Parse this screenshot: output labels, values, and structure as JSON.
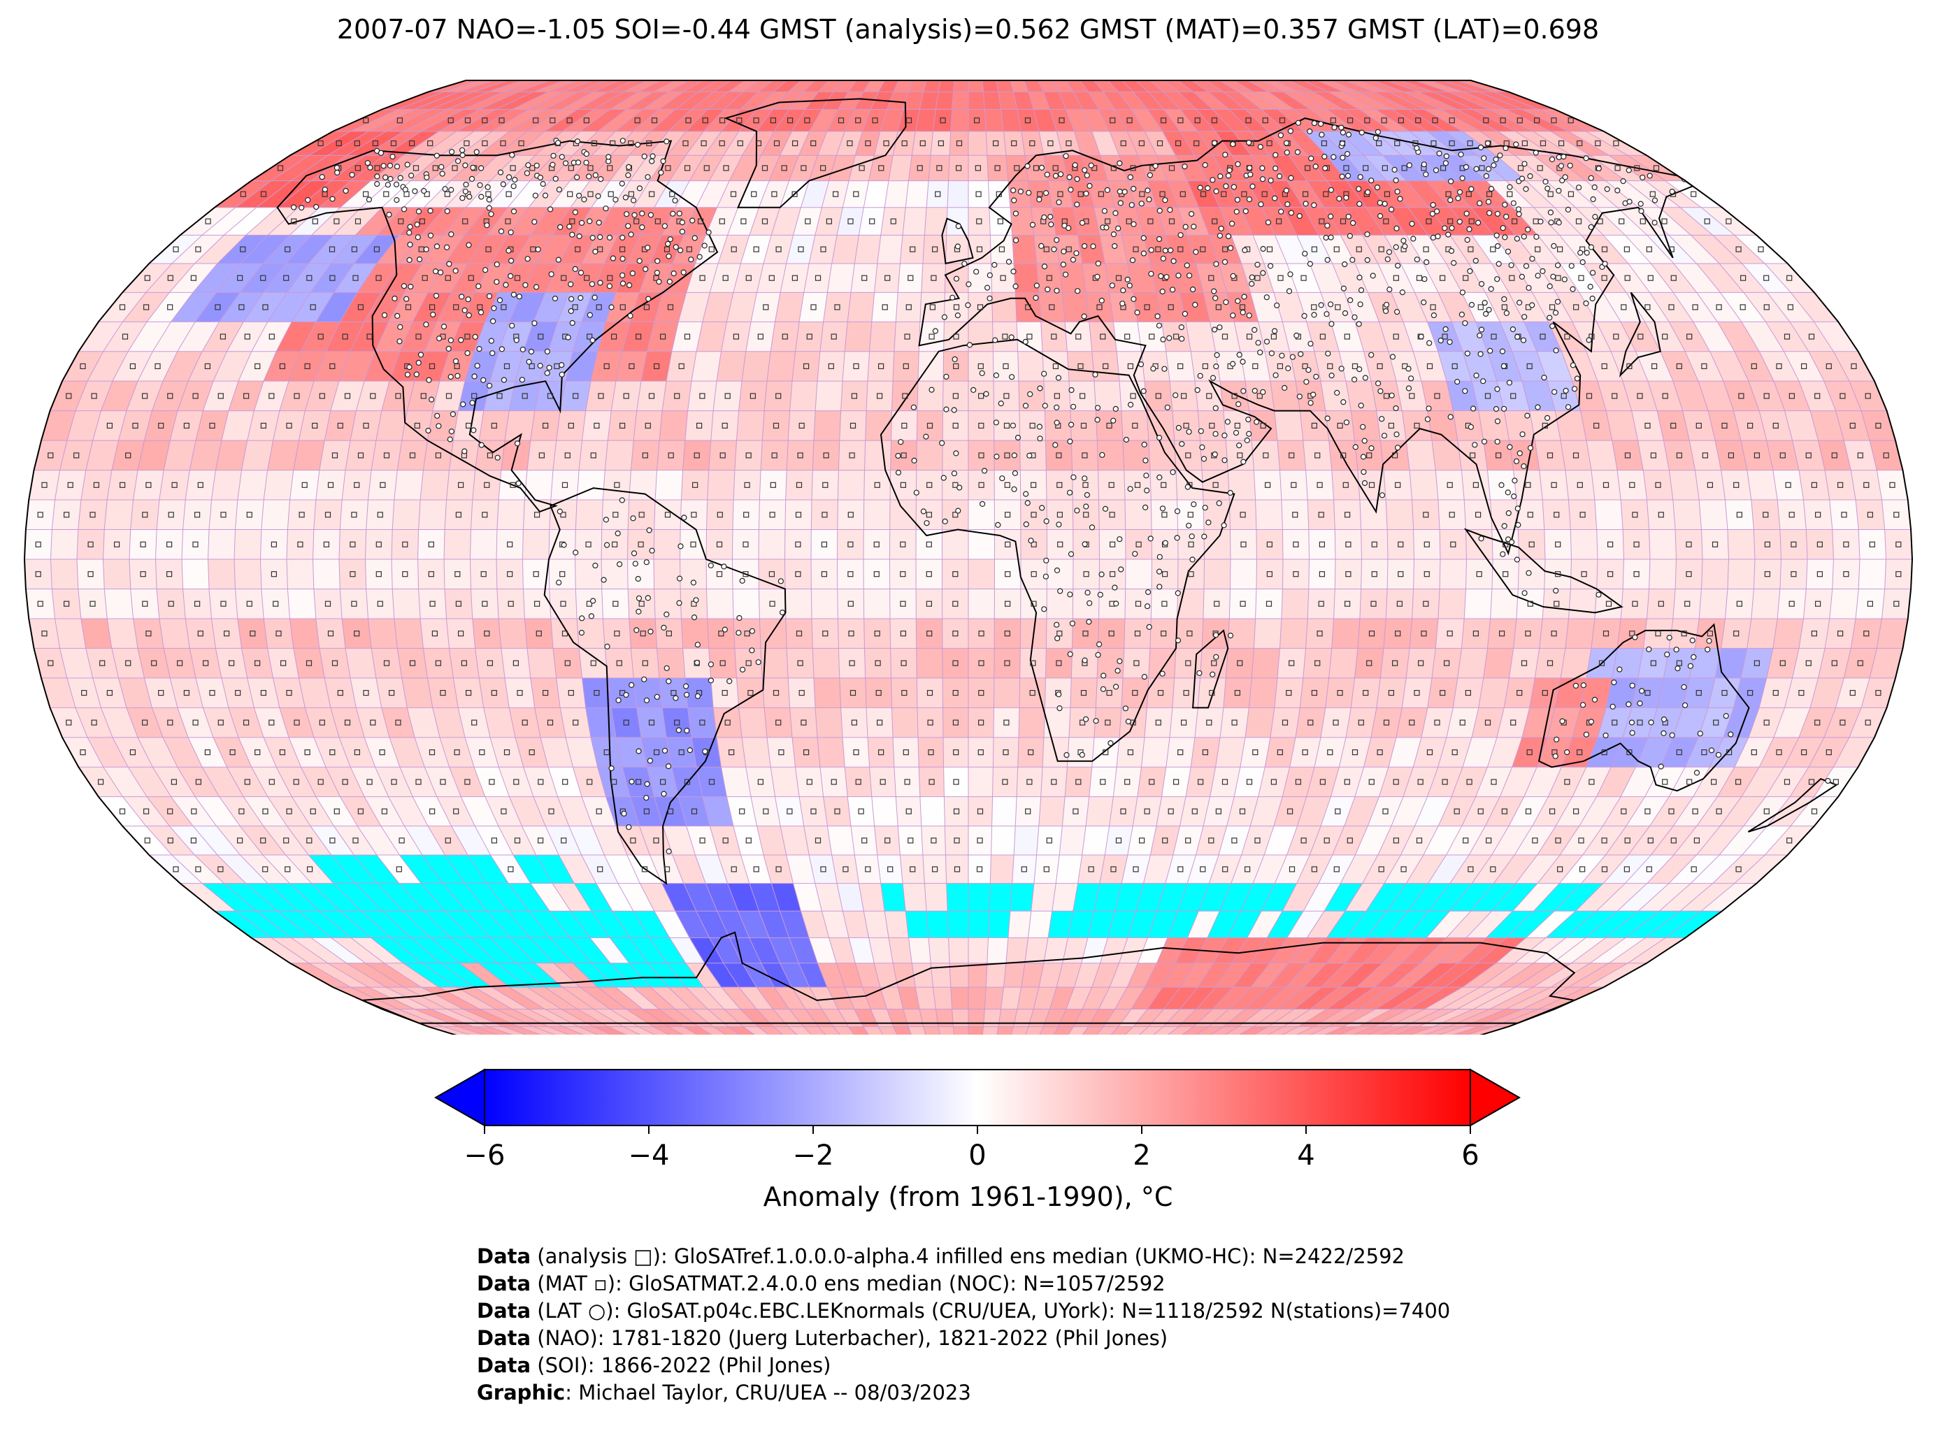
{
  "title": "2007-07 NAO=-1.05 SOI=-0.44 GMST (analysis)=0.562 GMST (MAT)=0.357 GMST (LAT)=0.698",
  "colorbar": {
    "label": "Anomaly (from 1961-1990), °C",
    "ticks": [
      "−6",
      "−4",
      "−2",
      "0",
      "2",
      "4",
      "6"
    ],
    "min": -6,
    "max": 6,
    "colors": {
      "low": "#0000ff",
      "mid": "#ffffff",
      "high": "#ff0000",
      "no_data": "#00ffff"
    }
  },
  "credits": [
    {
      "bold": "Data",
      "text": " (analysis □): GloSATref.1.0.0.0-alpha.4 infilled ens median (UKMO-HC): N=2422/2592"
    },
    {
      "bold": "Data",
      "text": " (MAT ▫): GloSATMAT.2.4.0.0 ens median (NOC): N=1057/2592"
    },
    {
      "bold": "Data",
      "text": " (LAT ○): GloSAT.p04c.EBC.LEKnormals (CRU/UEA, UYork): N=1118/2592 N(stations)=7400"
    },
    {
      "bold": "Data",
      "text": " (NAO): 1781-1820 (Juerg Luterbacher), 1821-2022 (Phil Jones)"
    },
    {
      "bold": "Data",
      "text": " (SOI): 1866-2022 (Phil Jones)"
    },
    {
      "bold": "Graphic",
      "text": ": Michael Taylor, CRU/UEA -- 08/03/2023"
    }
  ],
  "map": {
    "projection": "Robinson",
    "grid": "5x5 degree",
    "anomaly_regions": [
      {
        "lon": [
          -140,
          -60
        ],
        "lat": [
          30,
          60
        ],
        "anomaly": 2.8
      },
      {
        "lon": [
          -100,
          -75
        ],
        "lat": [
          25,
          45
        ],
        "anomaly": -2.0
      },
      {
        "lon": [
          -165,
          -130
        ],
        "lat": [
          40,
          55
        ],
        "anomaly": -2.2
      },
      {
        "lon": [
          -180,
          -150
        ],
        "lat": [
          60,
          90
        ],
        "anomaly": 3.5
      },
      {
        "lon": [
          10,
          60
        ],
        "lat": [
          40,
          70
        ],
        "anomaly": 2.5
      },
      {
        "lon": [
          55,
          130
        ],
        "lat": [
          55,
          75
        ],
        "anomaly": 3.2
      },
      {
        "lon": [
          95,
          140
        ],
        "lat": [
          65,
          80
        ],
        "anomaly": -1.8
      },
      {
        "lon": [
          95,
          120
        ],
        "lat": [
          25,
          40
        ],
        "anomaly": -1.5
      },
      {
        "lon": [
          -75,
          -50
        ],
        "lat": [
          -45,
          -20
        ],
        "anomaly": -2.5
      },
      {
        "lon": [
          -70,
          -40
        ],
        "lat": [
          -75,
          -55
        ],
        "anomaly": -3.5
      },
      {
        "lon": [
          120,
          155
        ],
        "lat": [
          -35,
          -15
        ],
        "anomaly": -1.8
      },
      {
        "lon": [
          110,
          125
        ],
        "lat": [
          -35,
          -20
        ],
        "anomaly": 2.5
      },
      {
        "lon": [
          50,
          140
        ],
        "lat": [
          -80,
          -65
        ],
        "anomaly": 3.0
      },
      {
        "lon": [
          -180,
          180
        ],
        "lat": [
          75,
          90
        ],
        "anomaly": 3.0
      }
    ],
    "no_data_regions": [
      {
        "lon": [
          -150,
          -85
        ],
        "lat": [
          -60,
          -50
        ]
      },
      {
        "lon": [
          -180,
          -90
        ],
        "lat": [
          -65,
          -55
        ]
      },
      {
        "lon": [
          -150,
          -75
        ],
        "lat": [
          -75,
          -60
        ]
      },
      {
        "lon": [
          -20,
          20
        ],
        "lat": [
          -65,
          -55
        ]
      },
      {
        "lon": [
          -10,
          55
        ],
        "lat": [
          -65,
          -60
        ]
      },
      {
        "lon": [
          20,
          145
        ],
        "lat": [
          -60,
          -55
        ]
      },
      {
        "lon": [
          60,
          180
        ],
        "lat": [
          -68,
          -62
        ]
      },
      {
        "lon": [
          150,
          180
        ],
        "lat": [
          -65,
          -60
        ]
      }
    ]
  }
}
